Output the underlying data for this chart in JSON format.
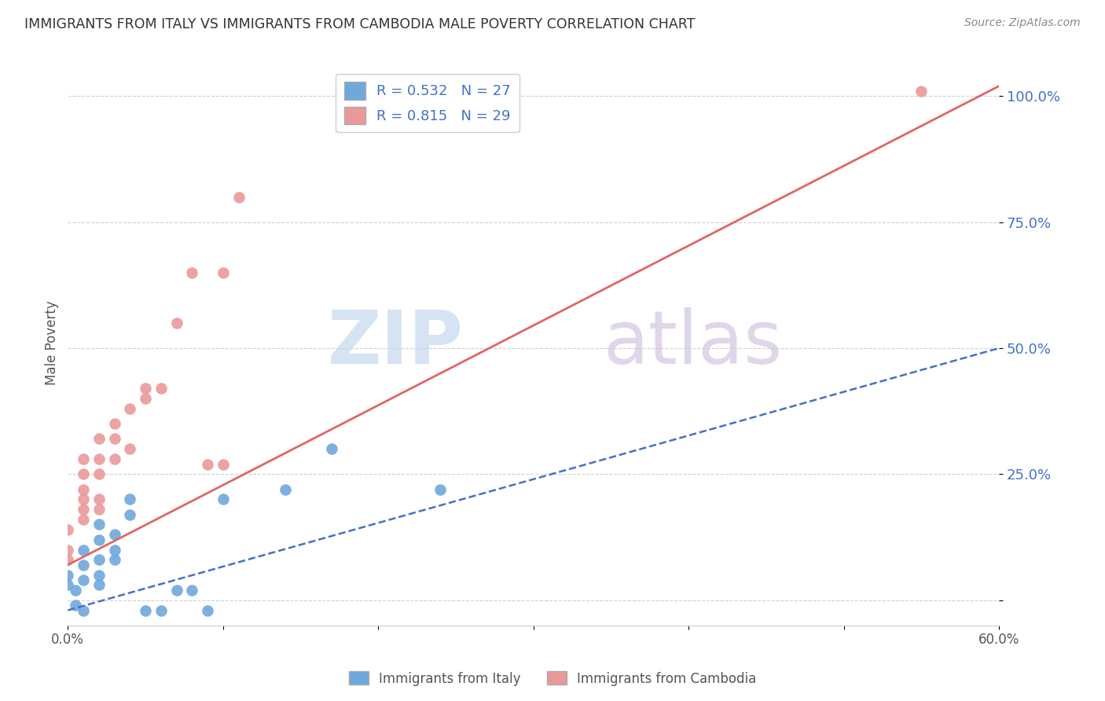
{
  "title": "IMMIGRANTS FROM ITALY VS IMMIGRANTS FROM CAMBODIA MALE POVERTY CORRELATION CHART",
  "source": "Source: ZipAtlas.com",
  "xlabel_italy": "Immigrants from Italy",
  "xlabel_cambodia": "Immigrants from Cambodia",
  "ylabel": "Male Poverty",
  "xlim": [
    0.0,
    0.6
  ],
  "ylim": [
    -0.05,
    1.07
  ],
  "y_ticks": [
    0.0,
    0.25,
    0.5,
    0.75,
    1.0
  ],
  "y_tick_labels": [
    "",
    "25.0%",
    "50.0%",
    "75.0%",
    "100.0%"
  ],
  "x_ticks": [
    0.0,
    0.1,
    0.2,
    0.3,
    0.4,
    0.5,
    0.6
  ],
  "x_tick_labels": [
    "0.0%",
    "",
    "",
    "",
    "",
    "",
    "60.0%"
  ],
  "R_italy": 0.532,
  "N_italy": 27,
  "R_cambodia": 0.815,
  "N_cambodia": 29,
  "italy_color": "#6fa8dc",
  "cambodia_color": "#ea9999",
  "italy_line_color": "#4472c4",
  "cambodia_line_color": "#e06666",
  "italy_scatter": [
    [
      0.0,
      0.03
    ],
    [
      0.0,
      0.05
    ],
    [
      0.005,
      0.02
    ],
    [
      0.005,
      -0.01
    ],
    [
      0.01,
      0.04
    ],
    [
      0.01,
      0.07
    ],
    [
      0.01,
      0.1
    ],
    [
      0.01,
      -0.02
    ],
    [
      0.02,
      0.08
    ],
    [
      0.02,
      0.05
    ],
    [
      0.02,
      0.03
    ],
    [
      0.02,
      0.12
    ],
    [
      0.02,
      0.15
    ],
    [
      0.03,
      0.08
    ],
    [
      0.03,
      0.1
    ],
    [
      0.03,
      0.13
    ],
    [
      0.04,
      0.17
    ],
    [
      0.04,
      0.2
    ],
    [
      0.05,
      -0.02
    ],
    [
      0.06,
      -0.02
    ],
    [
      0.07,
      0.02
    ],
    [
      0.08,
      0.02
    ],
    [
      0.09,
      -0.02
    ],
    [
      0.1,
      0.2
    ],
    [
      0.14,
      0.22
    ],
    [
      0.17,
      0.3
    ],
    [
      0.24,
      0.22
    ]
  ],
  "cambodia_scatter": [
    [
      0.0,
      0.14
    ],
    [
      0.0,
      0.1
    ],
    [
      0.0,
      0.08
    ],
    [
      0.01,
      0.16
    ],
    [
      0.01,
      0.18
    ],
    [
      0.01,
      0.2
    ],
    [
      0.01,
      0.22
    ],
    [
      0.01,
      0.25
    ],
    [
      0.01,
      0.28
    ],
    [
      0.02,
      0.18
    ],
    [
      0.02,
      0.2
    ],
    [
      0.02,
      0.25
    ],
    [
      0.02,
      0.28
    ],
    [
      0.02,
      0.32
    ],
    [
      0.03,
      0.28
    ],
    [
      0.03,
      0.32
    ],
    [
      0.03,
      0.35
    ],
    [
      0.04,
      0.3
    ],
    [
      0.04,
      0.38
    ],
    [
      0.05,
      0.4
    ],
    [
      0.05,
      0.42
    ],
    [
      0.06,
      0.42
    ],
    [
      0.07,
      0.55
    ],
    [
      0.08,
      0.65
    ],
    [
      0.09,
      0.27
    ],
    [
      0.1,
      0.27
    ],
    [
      0.1,
      0.65
    ],
    [
      0.11,
      0.8
    ],
    [
      0.55,
      1.01
    ]
  ],
  "italy_trendline": [
    [
      0.0,
      -0.02
    ],
    [
      0.6,
      0.5
    ]
  ],
  "cambodia_trendline": [
    [
      0.0,
      0.07
    ],
    [
      0.6,
      1.02
    ]
  ],
  "watermark_zip": "ZIP",
  "watermark_atlas": "atlas",
  "background_color": "#ffffff",
  "grid_color": "#d0d0d0",
  "watermark_color_zip": "#c5d8ed",
  "watermark_color_atlas": "#d4c5e2"
}
